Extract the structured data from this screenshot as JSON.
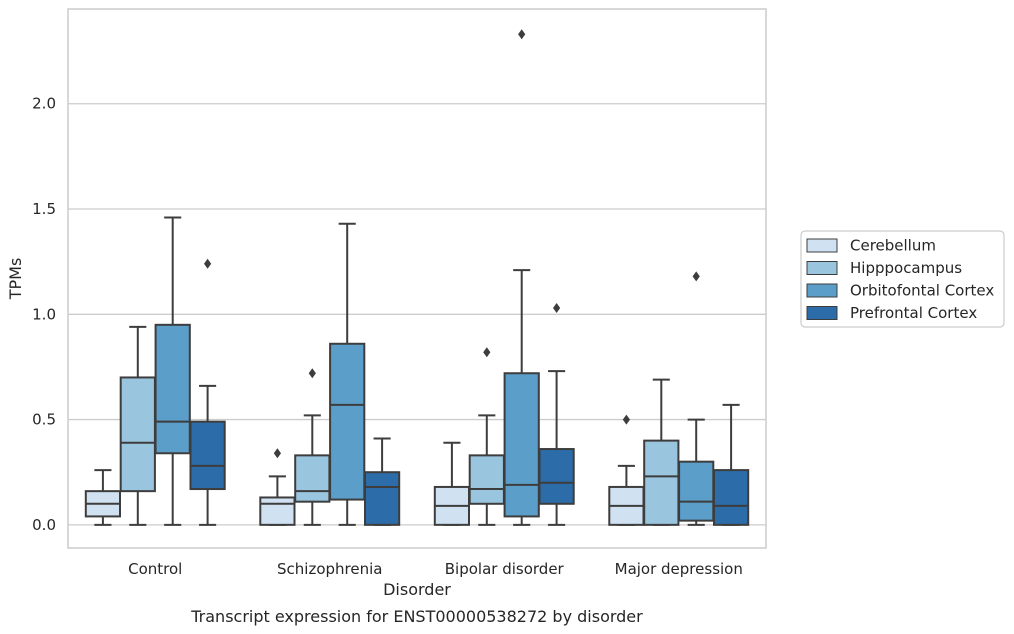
{
  "caption": "Transcript expression for ENST00000538272 by disorder",
  "chart_data": {
    "type": "box",
    "xlabel": "Disorder",
    "ylabel": "TPMs",
    "ylim": [
      -0.11,
      2.45
    ],
    "yticks": [
      0.0,
      0.5,
      1.0,
      1.5,
      2.0
    ],
    "ytick_labels": [
      "0.0",
      "0.5",
      "1.0",
      "1.5",
      "2.0"
    ],
    "grid": "horizontal",
    "legend_position": "right",
    "categories": [
      "Control",
      "Schizophrenia",
      "Bipolar disorder",
      "Major depression"
    ],
    "series": [
      {
        "name": "Cerebellum",
        "color": "#d0e2f2",
        "boxes": [
          {
            "whislo": 0.0,
            "q1": 0.04,
            "med": 0.1,
            "q3": 0.16,
            "whishi": 0.26,
            "fliers": []
          },
          {
            "whislo": 0.0,
            "q1": 0.0,
            "med": 0.1,
            "q3": 0.13,
            "whishi": 0.23,
            "fliers": [
              0.34
            ]
          },
          {
            "whislo": 0.0,
            "q1": 0.0,
            "med": 0.09,
            "q3": 0.18,
            "whishi": 0.39,
            "fliers": []
          },
          {
            "whislo": 0.0,
            "q1": 0.0,
            "med": 0.09,
            "q3": 0.18,
            "whishi": 0.28,
            "fliers": [
              0.5
            ]
          }
        ]
      },
      {
        "name": "Hipppocampus",
        "color": "#9ac5de",
        "boxes": [
          {
            "whislo": 0.0,
            "q1": 0.16,
            "med": 0.39,
            "q3": 0.7,
            "whishi": 0.94,
            "fliers": []
          },
          {
            "whislo": 0.0,
            "q1": 0.11,
            "med": 0.16,
            "q3": 0.33,
            "whishi": 0.52,
            "fliers": [
              0.72
            ]
          },
          {
            "whislo": 0.0,
            "q1": 0.1,
            "med": 0.17,
            "q3": 0.33,
            "whishi": 0.52,
            "fliers": [
              0.82
            ]
          },
          {
            "whislo": 0.0,
            "q1": 0.0,
            "med": 0.23,
            "q3": 0.4,
            "whishi": 0.69,
            "fliers": []
          }
        ]
      },
      {
        "name": "Orbitofontal Cortex",
        "color": "#5b9ec9",
        "boxes": [
          {
            "whislo": 0.0,
            "q1": 0.34,
            "med": 0.49,
            "q3": 0.95,
            "whishi": 1.46,
            "fliers": []
          },
          {
            "whislo": 0.0,
            "q1": 0.12,
            "med": 0.57,
            "q3": 0.86,
            "whishi": 1.43,
            "fliers": []
          },
          {
            "whislo": 0.0,
            "q1": 0.04,
            "med": 0.19,
            "q3": 0.72,
            "whishi": 1.21,
            "fliers": [
              2.33
            ]
          },
          {
            "whislo": 0.0,
            "q1": 0.02,
            "med": 0.11,
            "q3": 0.3,
            "whishi": 0.5,
            "fliers": [
              1.18
            ]
          }
        ]
      },
      {
        "name": "Prefrontal Cortex",
        "color": "#2c6ca8",
        "boxes": [
          {
            "whislo": 0.0,
            "q1": 0.17,
            "med": 0.28,
            "q3": 0.49,
            "whishi": 0.66,
            "fliers": [
              1.24
            ]
          },
          {
            "whislo": 0.0,
            "q1": 0.0,
            "med": 0.18,
            "q3": 0.25,
            "whishi": 0.41,
            "fliers": []
          },
          {
            "whislo": 0.0,
            "q1": 0.1,
            "med": 0.2,
            "q3": 0.36,
            "whishi": 0.73,
            "fliers": [
              1.03
            ]
          },
          {
            "whislo": 0.0,
            "q1": 0.0,
            "med": 0.09,
            "q3": 0.26,
            "whishi": 0.57,
            "fliers": []
          }
        ]
      }
    ]
  }
}
